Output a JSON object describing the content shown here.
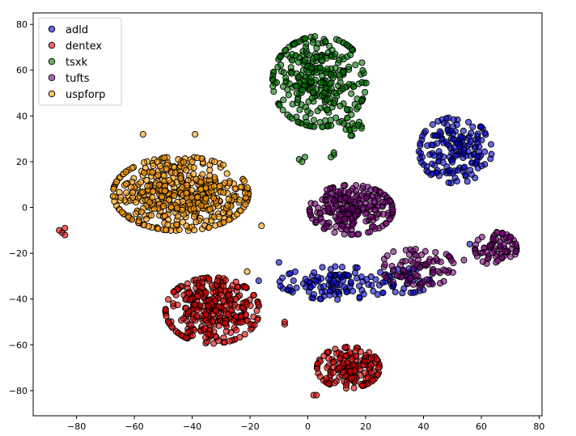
{
  "chart_data": {
    "type": "scatter",
    "title": "",
    "xlabel": "",
    "ylabel": "",
    "xlim": [
      -95,
      81
    ],
    "ylim": [
      -91,
      85
    ],
    "xticks": [
      -80,
      -60,
      -40,
      -20,
      0,
      20,
      40,
      60,
      80
    ],
    "yticks": [
      -80,
      -60,
      -40,
      -20,
      0,
      20,
      40,
      60,
      80
    ],
    "grid": false,
    "legend": "top-left",
    "series": [
      {
        "name": "adld",
        "color": "#0000cc",
        "clusters": [
          {
            "cx": 51,
            "cy": 25,
            "sx": 7,
            "sy": 8,
            "n": 170
          },
          {
            "cx": 10,
            "cy": -33,
            "sx": 11,
            "sy": 4,
            "n": 115
          },
          {
            "cx": 34,
            "cy": -32,
            "sx": 5,
            "sy": 3,
            "n": 30
          }
        ],
        "points": [
          [
            -10,
            -24
          ],
          [
            -17,
            -32
          ],
          [
            56,
            -16
          ],
          [
            -7,
            -36
          ]
        ]
      },
      {
        "name": "dentex",
        "color": "#dd0000",
        "clusters": [
          {
            "cx": -33,
            "cy": -45,
            "sx": 9,
            "sy": 8,
            "n": 340
          },
          {
            "cx": 14,
            "cy": -70,
            "sx": 6,
            "sy": 5,
            "n": 170
          }
        ],
        "points": [
          [
            -84,
            -9
          ],
          [
            -85,
            -11
          ],
          [
            -84,
            -12
          ],
          [
            -86,
            -10
          ],
          [
            2,
            -82
          ],
          [
            3,
            -82
          ],
          [
            -8,
            -51
          ],
          [
            -8,
            -50
          ]
        ]
      },
      {
        "name": "tsxk",
        "color": "#007700",
        "clusters": [
          {
            "cx": 4,
            "cy": 55,
            "sx": 9,
            "sy": 11,
            "n": 330
          },
          {
            "cx": 15,
            "cy": 35,
            "sx": 2,
            "sy": 2,
            "n": 15
          }
        ],
        "points": [
          [
            -3,
            21
          ],
          [
            -2,
            20
          ],
          [
            -1,
            22
          ],
          [
            9,
            23
          ],
          [
            9,
            24
          ],
          [
            8,
            22
          ]
        ]
      },
      {
        "name": "tufts",
        "color": "#770077",
        "clusters": [
          {
            "cx": 15,
            "cy": -1,
            "sx": 8,
            "sy": 6,
            "n": 240
          },
          {
            "cx": 38,
            "cy": -26,
            "sx": 7,
            "sy": 5,
            "n": 85
          },
          {
            "cx": 65,
            "cy": -18,
            "sx": 4,
            "sy": 4,
            "n": 80
          }
        ],
        "points": [
          [
            54,
            -23
          ]
        ]
      },
      {
        "name": "uspforp",
        "color": "#ff9900",
        "clusters": [
          {
            "cx": -44,
            "cy": 6,
            "sx": 13,
            "sy": 9,
            "n": 480
          }
        ],
        "points": [
          [
            -57,
            32
          ],
          [
            -39,
            32
          ],
          [
            -16,
            -8
          ],
          [
            -21,
            -28
          ]
        ]
      }
    ]
  }
}
